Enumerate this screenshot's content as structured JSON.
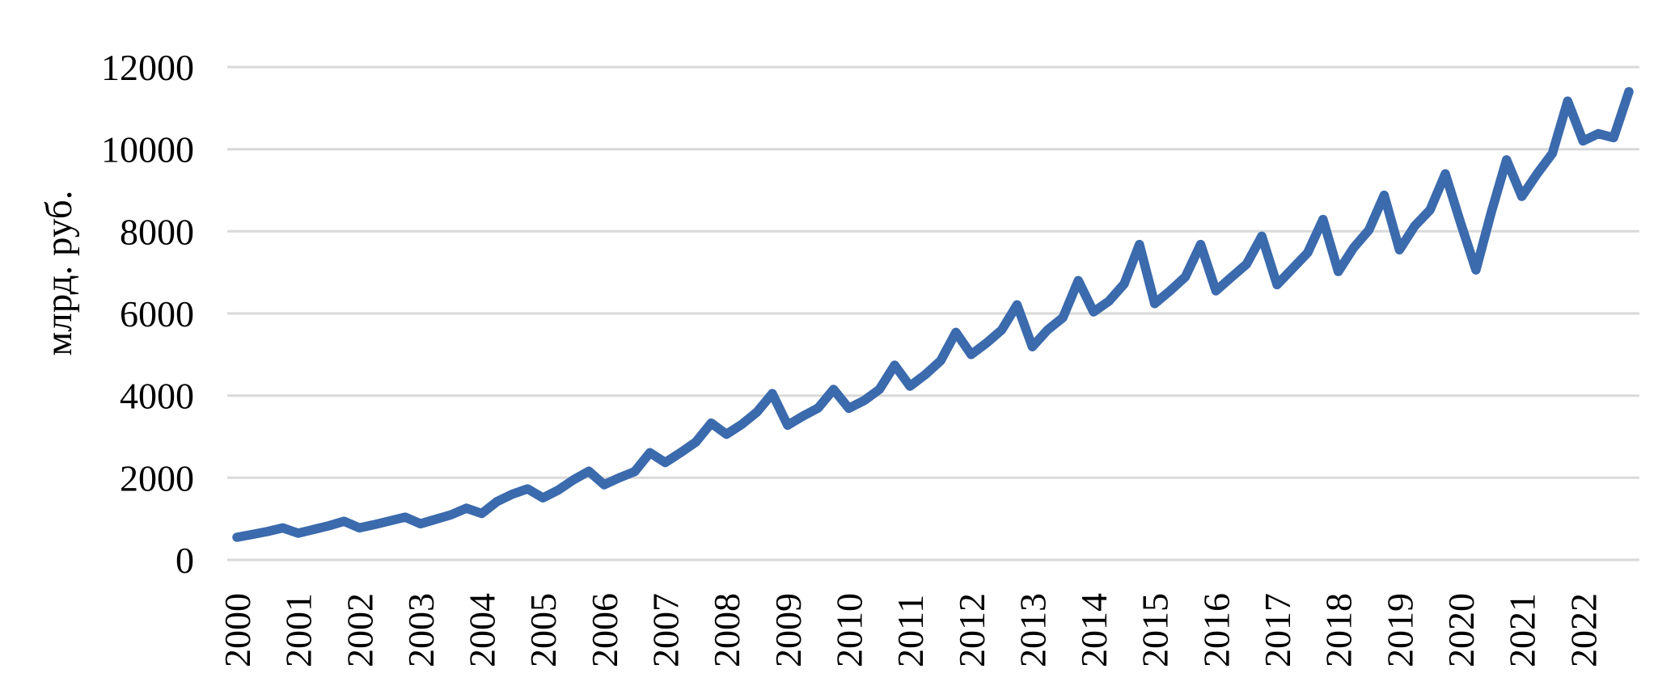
{
  "chart_data": {
    "type": "line",
    "title": "",
    "xlabel": "",
    "ylabel": "млрд. руб.",
    "frequency": "quarterly",
    "start_period": "2000 Q1",
    "end_period": "2022 Q4",
    "x_tick_labels": [
      "2000",
      "2001",
      "2002",
      "2003",
      "2004",
      "2005",
      "2006",
      "2007",
      "2008",
      "2009",
      "2010",
      "2011",
      "2012",
      "2013",
      "2014",
      "2015",
      "2016",
      "2017",
      "2018",
      "2019",
      "2020",
      "2021",
      "2022"
    ],
    "y_ticks": [
      0,
      2000,
      4000,
      6000,
      8000,
      10000,
      12000
    ],
    "ylim": [
      0,
      12000
    ],
    "grid": true,
    "legend": "none",
    "line_color": "#3B6AAD",
    "gridline_color": "#D9D9D9",
    "text_color": "#000000",
    "background": "#FFFFFF",
    "series": [
      {
        "name": "млрд. руб.",
        "values": [
          550,
          620,
          690,
          780,
          650,
          740,
          830,
          940,
          780,
          860,
          950,
          1040,
          880,
          990,
          1100,
          1260,
          1130,
          1420,
          1600,
          1730,
          1510,
          1700,
          1950,
          2160,
          1830,
          2000,
          2150,
          2610,
          2370,
          2610,
          2870,
          3330,
          3060,
          3300,
          3600,
          4050,
          3280,
          3500,
          3700,
          4150,
          3690,
          3880,
          4150,
          4740,
          4230,
          4510,
          4850,
          5540,
          5000,
          5280,
          5600,
          6210,
          5190,
          5600,
          5900,
          6800,
          6040,
          6300,
          6720,
          7680,
          6240,
          6550,
          6890,
          7680,
          6550,
          6880,
          7200,
          7880,
          6700,
          7090,
          7480,
          8290,
          7020,
          7600,
          8030,
          8880,
          7550,
          8130,
          8520,
          9400,
          8200,
          7060,
          8460,
          9740,
          8850,
          9400,
          9900,
          11170,
          10200,
          10380,
          10280,
          11400
        ]
      }
    ]
  }
}
